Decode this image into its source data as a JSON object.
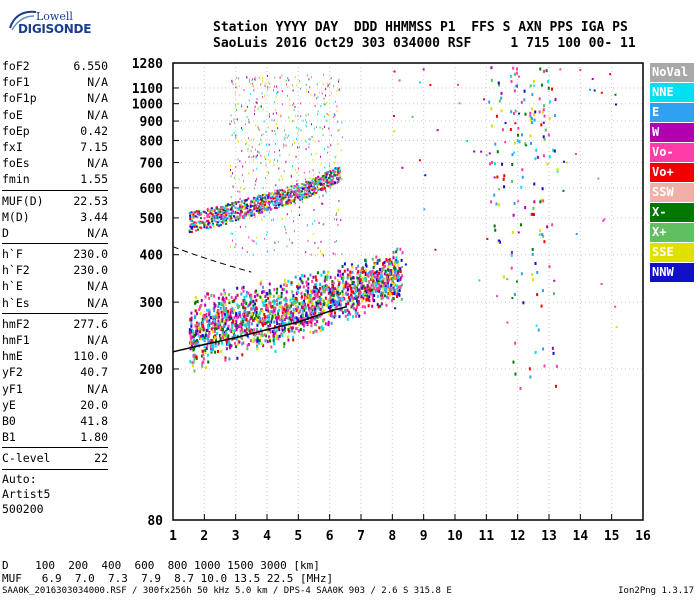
{
  "logo": {
    "line1": "Lowell",
    "line2": "DIGISONDE"
  },
  "header": {
    "row1": "Station YYYY DAY  DDD HHMMSS P1  FFS S AXN PPS IGA PS",
    "row2": "SaoLuis 2016 Oct29 303 034000 RSF     1 715 100 00- 11"
  },
  "params": [
    [
      {
        "name": "foF2",
        "value": "6.550"
      },
      {
        "name": "foF1",
        "value": "N/A"
      },
      {
        "name": "foF1p",
        "value": "N/A"
      },
      {
        "name": "foE",
        "value": "N/A"
      },
      {
        "name": "foEp",
        "value": "0.42"
      },
      {
        "name": "fxI",
        "value": "7.15"
      },
      {
        "name": "foEs",
        "value": "N/A"
      },
      {
        "name": "fmin",
        "value": "1.55"
      }
    ],
    [
      {
        "name": "MUF(D)",
        "value": "22.53"
      },
      {
        "name": "M(D)",
        "value": "3.44"
      },
      {
        "name": "D",
        "value": "N/A"
      }
    ],
    [
      {
        "name": "h`F",
        "value": "230.0"
      },
      {
        "name": "h`F2",
        "value": "230.0"
      },
      {
        "name": "h`E",
        "value": "N/A"
      },
      {
        "name": "h`Es",
        "value": "N/A"
      }
    ],
    [
      {
        "name": "hmF2",
        "value": "277.6"
      },
      {
        "name": "hmF1",
        "value": "N/A"
      },
      {
        "name": "hmE",
        "value": "110.0"
      },
      {
        "name": "yF2",
        "value": "40.7"
      },
      {
        "name": "yF1",
        "value": "N/A"
      },
      {
        "name": "yE",
        "value": "20.0"
      },
      {
        "name": "B0",
        "value": "41.8"
      },
      {
        "name": "B1",
        "value": "1.80"
      }
    ],
    [
      {
        "name": "C-level",
        "value": "22"
      }
    ]
  ],
  "auto": [
    "Auto:",
    "Artist5",
    "500200"
  ],
  "legend": [
    {
      "label": "NoVal",
      "color": "#a8a8a8"
    },
    {
      "label": "NNE",
      "color": "#00e0f0"
    },
    {
      "label": "E",
      "color": "#30a0f0"
    },
    {
      "label": "W",
      "color": "#b000b0"
    },
    {
      "label": "Vo-",
      "color": "#ff3ca8"
    },
    {
      "label": "Vo+",
      "color": "#f00000"
    },
    {
      "label": "SSW",
      "color": "#f0b0a8"
    },
    {
      "label": "X-",
      "color": "#007800"
    },
    {
      "label": "X+",
      "color": "#60c060"
    },
    {
      "label": "SSE",
      "color": "#e0e000"
    },
    {
      "label": "NNW",
      "color": "#1010c8"
    }
  ],
  "dtable": {
    "row1": "D    100  200  400  600  800 1000 1500 3000 [km]",
    "row2": "MUF   6.9  7.0  7.3  7.9  8.7 10.0 13.5 22.5 [MHz]"
  },
  "footer": "SAA0K_2016303034000.RSF / 300fx256h 50 kHz 5.0 km / DPS-4 SAA0K 903 / 2.6 S 315.8 E",
  "version": "Ion2Png 1.3.17",
  "chart_data": {
    "type": "scatter",
    "title": "",
    "xlabel": "",
    "ylabel": "",
    "xlim": [
      1,
      16
    ],
    "ylim": [
      80,
      1280
    ],
    "y_scale": "log",
    "x_ticks": [
      "1",
      "2",
      "3",
      "4",
      "5",
      "6",
      "7",
      "8",
      "9",
      "10",
      "11",
      "12",
      "13",
      "14",
      "15",
      "16"
    ],
    "y_ticks": [
      "80",
      "200",
      "300",
      "400",
      "500",
      "600",
      "700",
      "800",
      "900",
      "1000",
      "1100",
      "1280"
    ],
    "grid": true,
    "traces": [
      {
        "name": "F2 trace (virtual height)",
        "x": [
          1.5,
          2.5,
          3.5,
          4.5,
          5.0,
          5.5,
          6.0,
          6.5,
          7.0,
          7.5,
          8.0,
          8.3
        ],
        "y": [
          240,
          250,
          260,
          270,
          280,
          290,
          300,
          310,
          320,
          330,
          340,
          345
        ]
      },
      {
        "name": "F2 second echo",
        "x": [
          1.5,
          2.5,
          3.5,
          4.5,
          5.5,
          6.3
        ],
        "y": [
          490,
          510,
          540,
          570,
          610,
          660
        ]
      },
      {
        "name": "true height profile",
        "x": [
          1.0,
          2.0,
          3.0,
          4.0,
          5.0,
          6.0,
          6.55
        ],
        "y": [
          222,
          232,
          242,
          254,
          266,
          284,
          292
        ]
      }
    ]
  }
}
